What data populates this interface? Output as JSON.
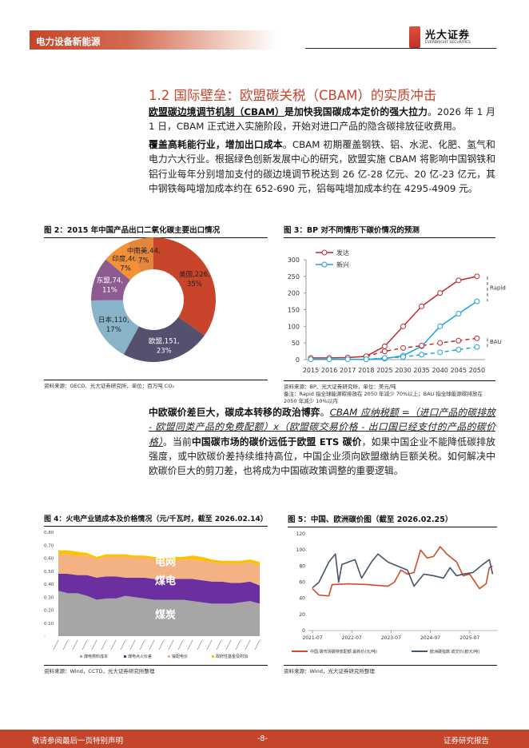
{
  "header": {
    "section": "电力设备新能源",
    "logo_cn": "光大证券",
    "logo_en": "EVERBRIGHT SECURITIES",
    "brand_color": "#c5452a"
  },
  "section_title": "1.2  国际壁垒：欧盟碳关税（CBAM）的实质冲击",
  "paragraphs": {
    "p1": {
      "bold_underline": "欧盟碳边境调节机制（CBAM）",
      "bold": "是加快我国碳成本定价的强大拉力",
      "text": "。2026 年 1 月 1 日，CBAM 正式进入实施阶段，开始对进口产品的隐含碳排放征收费用。"
    },
    "p2": {
      "bold": "覆盖高耗能行业，增加出口成本",
      "text": "。CBAM 初期覆盖钢铁、铝、水泥、化肥、氢气和电力六大行业。根据绿色创新发展中心的研究，欧盟实施 CBAM 将影响中国钢铁和铝行业每年分别增加支付的碳边境调节税达到 26 亿-28 亿元、20 亿-23 亿元，其中钢铁每吨增加成本约在 652-690 元，铝每吨增加成本约在 4295-4909 元。"
    },
    "p3": {
      "bold1": "中欧碳价差巨大，碳成本转移的政治博弈",
      "t1": "。",
      "formula": "CBAM 应纳税额 =（进口产品的碳排放 - 欧盟同类产品的免费配额）x（欧盟碳交易价格 - 出口国已经支付的产品的碳价格）",
      "t2": "。当前",
      "bold2": "中国碳市场的碳价远低于欧盟 ETS 碳价",
      "t3": "，如果中国企业不能降低碳排放强度，或中欧碳价差持续维持高位，中国企业须向欧盟缴纳巨额关税。如何解决中欧碳价巨大的剪刀差，也将成为中国碳政策调整的重要逻辑。"
    }
  },
  "figures": {
    "fig2": {
      "title": "图 2：2015 年中国产品出口二氧化碳主要出口情况",
      "source": "资料来源：OECD、光大证券研究所，单位：百万吨 CO₂"
    },
    "fig3": {
      "title": "图 3：BP 对不同情形下碳价情况的预测",
      "source": "资料来源：BP、光大证券研究所，单位：美元/吨",
      "note": "备注：Rapid 指全球能源碳排放在 2050 年减少 70%以上；BAU 指全球能源碳排放在 2050 年减少 10%以内"
    },
    "fig4": {
      "title": "图 4：火电产业链成本及价格情况（元/千瓦时，截至 2026.02.14）",
      "source": "资料来源：Wind，CCTD，光大证券研究所整理"
    },
    "fig5": {
      "title": "图 5：中国、欧洲碳价图（截至 2026.02.25）",
      "source": "资料来源：Wind，光大证券研究所整理"
    }
  },
  "chart_data": [
    {
      "type": "pie",
      "donut": true,
      "slices": [
        {
          "name": "美国",
          "value": 226,
          "pct": "35%",
          "color": "#c8442a"
        },
        {
          "name": "欧盟",
          "value": 151,
          "pct": "23%",
          "color": "#54506e"
        },
        {
          "name": "日本",
          "value": 110,
          "pct": "17%",
          "color": "#88b3c9"
        },
        {
          "name": "东盟",
          "value": 74,
          "pct": "11%",
          "color": "#8d5b91"
        },
        {
          "name": "印度",
          "value": 46,
          "pct": "7%",
          "color": "#f29138"
        },
        {
          "name": "中南美",
          "value": 44,
          "pct": "7%",
          "color": "#e3873d"
        }
      ]
    },
    {
      "type": "line",
      "categories": [
        "2015",
        "2016",
        "2017",
        "2018",
        "2025",
        "2030",
        "2035",
        "2040",
        "2045",
        "2050"
      ],
      "ylim": [
        0,
        300
      ],
      "yticks": [
        0,
        50,
        100,
        150,
        200,
        250,
        300
      ],
      "series": [
        {
          "name": "发达",
          "scenario": "Rapid",
          "color": "#c0282d",
          "dashed": false,
          "values": [
            5,
            5,
            6,
            10,
            40,
            100,
            160,
            200,
            238,
            250
          ],
          "legend": true
        },
        {
          "name": "新兴",
          "scenario": "Rapid",
          "color": "#1fa3d8",
          "dashed": false,
          "values": [
            1,
            1,
            1,
            1,
            3,
            12,
            40,
            100,
            138,
            175
          ],
          "legend": true
        },
        {
          "name": "发达",
          "scenario": "BAU",
          "color": "#c0282d",
          "dashed": true,
          "values": [
            null,
            null,
            null,
            10,
            25,
            35,
            42,
            50,
            57,
            64
          ]
        },
        {
          "name": "新兴",
          "scenario": "BAU",
          "color": "#1fa3d8",
          "dashed": true,
          "values": [
            null,
            null,
            null,
            1,
            5,
            8,
            15,
            22,
            30,
            38
          ]
        }
      ],
      "annotations": [
        "Rapid",
        "BAU"
      ]
    },
    {
      "type": "area",
      "stacked": true,
      "ylim": [
        0,
        0.8
      ],
      "yticks": [
        "-",
        "0.10",
        "0.20",
        "0.30",
        "0.40",
        "0.50",
        "0.60",
        "0.70",
        "0.80"
      ],
      "area_labels": [
        "电网",
        "煤电",
        "煤炭"
      ],
      "series": [
        {
          "name": "煤电燃料成本",
          "color": "#a6a6a6",
          "values": [
            0.35,
            0.33,
            0.33,
            0.31,
            0.28,
            0.29,
            0.29,
            0.31,
            0.3,
            0.29,
            0.28,
            0.28,
            0.28,
            0.28,
            0.27,
            0.26,
            0.25,
            0.25,
            0.25,
            0.26,
            0.27,
            0.25
          ]
        },
        {
          "name": "煤电点火价差",
          "color": "#6b2fa0",
          "values": [
            0.13,
            0.15,
            0.14,
            0.16,
            0.17,
            0.17,
            0.17,
            0.14,
            0.15,
            0.16,
            0.16,
            0.16,
            0.16,
            0.16,
            0.17,
            0.17,
            0.17,
            0.17,
            0.16,
            0.15,
            0.15,
            0.14
          ]
        },
        {
          "name": "输配电价",
          "color": "#f4b183",
          "values": [
            0.15,
            0.15,
            0.15,
            0.15,
            0.14,
            0.15,
            0.15,
            0.16,
            0.15,
            0.15,
            0.15,
            0.14,
            0.14,
            0.15,
            0.15,
            0.15,
            0.15,
            0.14,
            0.15,
            0.15,
            0.15,
            0.15
          ]
        },
        {
          "name": "政府性基金及附加",
          "color": "#ffc000",
          "values": [
            0.03,
            0.03,
            0.03,
            0.02,
            0.02,
            0.02,
            0.02,
            0.02,
            0.02,
            0.02,
            0.02,
            0.02,
            0.03,
            0.02,
            0.03,
            0.03,
            0.02,
            0.02,
            0.02,
            0.02,
            0.02,
            0.03
          ]
        }
      ]
    },
    {
      "type": "line",
      "ylim": [
        0,
        120
      ],
      "yticks": [
        0,
        20,
        40,
        60,
        80,
        100,
        120
      ],
      "xticks": [
        "2021-07",
        "2022-07",
        "2023-07",
        "2024-07",
        "2025-07"
      ],
      "series": [
        {
          "name": "中国:碳市场碳排放配额:最新价(元/吨)",
          "color": "#d24a26",
          "points": [
            [
              "2021-07",
              52
            ],
            [
              "2021-09",
              44
            ],
            [
              "2021-12",
              43
            ],
            [
              "2022-01",
              57
            ],
            [
              "2022-06",
              58
            ],
            [
              "2022-12",
              57
            ],
            [
              "2023-06",
              55
            ],
            [
              "2023-08",
              60
            ],
            [
              "2023-10",
              75
            ],
            [
              "2023-12",
              70
            ],
            [
              "2024-02",
              72
            ],
            [
              "2024-04",
              100
            ],
            [
              "2024-06",
              90
            ],
            [
              "2024-08",
              92
            ],
            [
              "2024-10",
              104
            ],
            [
              "2024-12",
              95
            ],
            [
              "2025-03",
              85
            ],
            [
              "2025-05",
              68
            ],
            [
              "2025-07",
              70
            ],
            [
              "2025-10",
              52
            ],
            [
              "2025-12",
              58
            ],
            [
              "2026-01",
              78
            ],
            [
              "2026-02",
              80
            ]
          ]
        },
        {
          "name": "欧洲碳指数:成交价(欧元/吨)",
          "color": "#44546a",
          "points": [
            [
              "2021-07",
              53
            ],
            [
              "2021-09",
              60
            ],
            [
              "2021-12",
              85
            ],
            [
              "2022-02",
              95
            ],
            [
              "2022-03",
              60
            ],
            [
              "2022-04",
              82
            ],
            [
              "2022-06",
              85
            ],
            [
              "2022-08",
              88
            ],
            [
              "2022-10",
              65
            ],
            [
              "2023-01",
              85
            ],
            [
              "2023-03",
              95
            ],
            [
              "2023-06",
              85
            ],
            [
              "2023-09",
              80
            ],
            [
              "2023-12",
              75
            ],
            [
              "2024-02",
              55
            ],
            [
              "2024-05",
              70
            ],
            [
              "2024-08",
              68
            ],
            [
              "2024-11",
              65
            ],
            [
              "2025-01",
              78
            ],
            [
              "2025-03",
              68
            ],
            [
              "2025-05",
              70
            ],
            [
              "2025-08",
              72
            ],
            [
              "2025-11",
              82
            ],
            [
              "2026-01",
              88
            ],
            [
              "2026-02",
              70
            ]
          ]
        }
      ]
    }
  ],
  "footer": {
    "left": "敬请参阅最后一页特别声明",
    "page": "-8-",
    "right": "证券研究报告"
  }
}
